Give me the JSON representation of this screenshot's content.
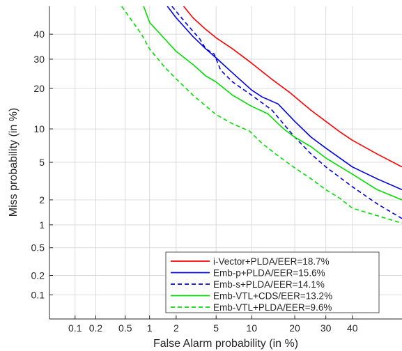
{
  "chart_data": {
    "type": "line",
    "xlabel": "False Alarm probability (in %)",
    "ylabel": "Miss probability (in %)",
    "x_scale": "probit",
    "y_scale": "probit",
    "xlim": [
      0.04,
      60
    ],
    "ylim": [
      0.04,
      52
    ],
    "x_ticks": [
      0.1,
      0.2,
      0.5,
      1,
      2,
      5,
      10,
      20,
      30,
      40
    ],
    "x_tick_labels": [
      "0.1",
      "0.2",
      "0.5",
      "1",
      "2",
      "5",
      "10",
      "20",
      "30",
      "40"
    ],
    "y_ticks": [
      0.1,
      0.2,
      0.5,
      1,
      2,
      5,
      10,
      20,
      30,
      40
    ],
    "y_tick_labels": [
      "0.1",
      "0.2",
      "0.5",
      "1",
      "2",
      "5",
      "10",
      "20",
      "30",
      "40"
    ],
    "grid": true,
    "legend_position": "bottom-right",
    "series": [
      {
        "name": "i-Vector+PLDA/EER=18.7%",
        "color": "#ff0000",
        "dash": "solid",
        "x": [
          2.4,
          3,
          4,
          5,
          7,
          10,
          14,
          18.7,
          25,
          30,
          35,
          40,
          50,
          60
        ],
        "y": [
          52,
          47,
          42,
          38.5,
          34,
          28.5,
          23,
          18.7,
          14,
          11.5,
          9.5,
          8,
          6,
          4.5
        ]
      },
      {
        "name": "Emb-p+PLDA/EER=15.6%",
        "color": "#0000e6",
        "dash": "solid",
        "x": [
          1.6,
          2,
          3,
          4,
          5,
          7,
          10,
          12,
          15.6,
          20,
          25,
          30,
          40,
          50,
          60
        ],
        "y": [
          52,
          47,
          39,
          34,
          30.5,
          25,
          19.5,
          17.5,
          15.6,
          11.5,
          8.5,
          6.8,
          4.5,
          3.4,
          2.6
        ]
      },
      {
        "name": "Emb-s+PLDA/EER=14.1%",
        "color": "#0000e6",
        "dash": "dashed",
        "x": [
          1.8,
          2.5,
          3.5,
          4,
          4.8,
          5.5,
          7,
          10,
          14.1,
          20,
          25,
          30,
          40,
          50,
          60
        ],
        "y": [
          52,
          45,
          38,
          34,
          32,
          26,
          22,
          18,
          14.1,
          8.5,
          6,
          4.5,
          2.8,
          1.8,
          1.2
        ]
      },
      {
        "name": "Emb-VTL+CDS/EER=13.2%",
        "color": "#00dd00",
        "dash": "solid",
        "x": [
          0.85,
          1,
          1.5,
          2,
          3,
          4,
          5,
          7,
          10,
          13.2,
          17,
          20,
          25,
          30,
          40,
          50,
          60
        ],
        "y": [
          52,
          45,
          38,
          33,
          28,
          24,
          22,
          18,
          15,
          13.2,
          10,
          8.5,
          7,
          5.5,
          3.8,
          2.6,
          2
        ]
      },
      {
        "name": "Emb-VTL+PLDA/EER=9.6%",
        "color": "#00e000",
        "dash": "dashed",
        "x": [
          0.45,
          0.6,
          0.8,
          1,
          1.5,
          2,
          3,
          5,
          7,
          9.6,
          12,
          15,
          20,
          25,
          30,
          35,
          40,
          50,
          60
        ],
        "y": [
          52,
          46,
          40,
          34,
          27,
          23,
          18,
          13,
          11,
          9.6,
          7.5,
          6,
          4.4,
          3.4,
          2.6,
          2.1,
          1.6,
          1.3,
          1.05
        ]
      }
    ]
  }
}
